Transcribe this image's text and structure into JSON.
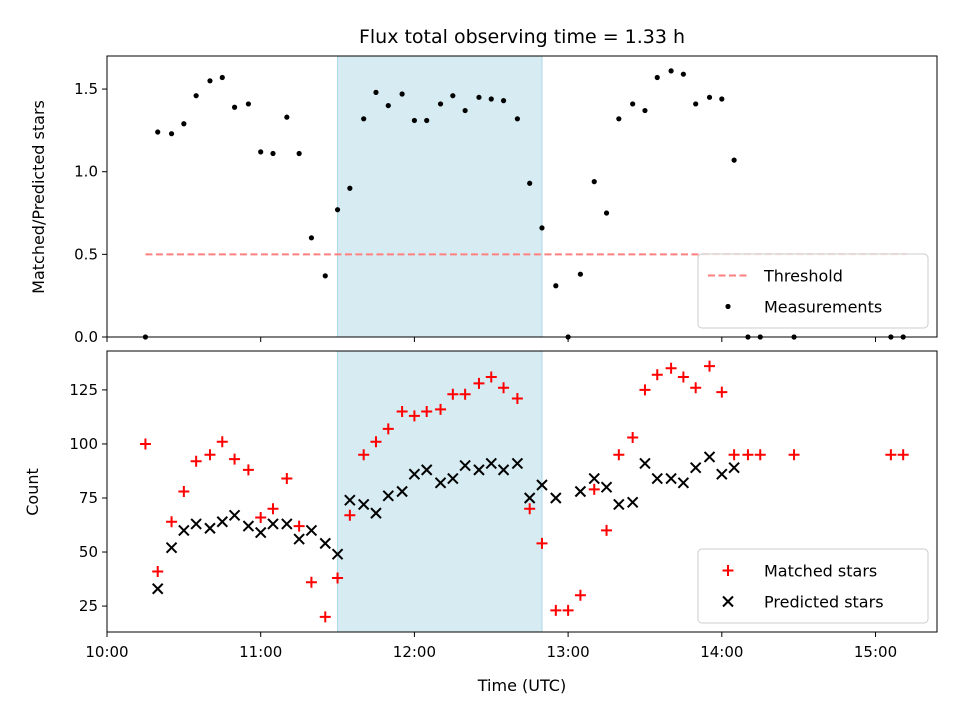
{
  "chart_data": {
    "title": "Flux total observing time = 1.33 h",
    "xlabel": "Time (UTC)",
    "x_unit": "hours UTC",
    "xlim": [
      10.0,
      15.4
    ],
    "xticks": [
      10,
      11,
      12,
      13,
      14,
      15
    ],
    "xtick_labels": [
      "10:00",
      "11:00",
      "12:00",
      "13:00",
      "14:00",
      "15:00"
    ],
    "highlight_span": {
      "from": 11.5,
      "to": 12.83,
      "color": "#add8e6"
    },
    "panels": [
      {
        "type": "scatter",
        "ylabel": "Matched/Predicted stars",
        "ylim": [
          0,
          1.7
        ],
        "yticks": [
          0.0,
          0.5,
          1.0,
          1.5
        ],
        "ytick_labels": [
          "0.0",
          "0.5",
          "1.0",
          "1.5"
        ],
        "legend_position": "bottom-right",
        "threshold": {
          "name": "Threshold",
          "value": 0.5,
          "x": [
            10.25,
            15.2
          ],
          "color": "#ff7f7f",
          "style": "dashed"
        },
        "series": [
          {
            "name": "Measurements",
            "marker": "dot",
            "color": "#000000",
            "x": [
              10.25,
              10.33,
              10.42,
              10.5,
              10.58,
              10.67,
              10.75,
              10.83,
              10.92,
              11.0,
              11.08,
              11.17,
              11.25,
              11.33,
              11.42,
              11.5,
              11.58,
              11.67,
              11.75,
              11.83,
              11.92,
              12.0,
              12.08,
              12.17,
              12.25,
              12.33,
              12.42,
              12.5,
              12.58,
              12.67,
              12.75,
              12.83,
              12.92,
              13.0,
              13.08,
              13.17,
              13.25,
              13.33,
              13.42,
              13.5,
              13.58,
              13.67,
              13.75,
              13.83,
              13.92,
              14.0,
              14.08,
              14.17,
              14.25,
              14.47,
              15.1,
              15.18
            ],
            "y": [
              0.0,
              1.24,
              1.23,
              1.29,
              1.46,
              1.55,
              1.57,
              1.39,
              1.41,
              1.12,
              1.11,
              1.33,
              1.11,
              0.6,
              0.37,
              0.77,
              0.9,
              1.32,
              1.48,
              1.4,
              1.47,
              1.31,
              1.31,
              1.41,
              1.46,
              1.37,
              1.45,
              1.44,
              1.43,
              1.32,
              0.93,
              0.66,
              0.31,
              0.0,
              0.38,
              0.94,
              0.75,
              1.32,
              1.41,
              1.37,
              1.57,
              1.61,
              1.59,
              1.41,
              1.45,
              1.44,
              1.07,
              0.0,
              0.0,
              0.0,
              0.0,
              0.0
            ]
          }
        ]
      },
      {
        "type": "scatter",
        "ylabel": "Count",
        "ylim": [
          13,
          143
        ],
        "yticks": [
          25,
          50,
          75,
          100,
          125
        ],
        "ytick_labels": [
          "25",
          "50",
          "75",
          "100",
          "125"
        ],
        "legend_position": "bottom-right",
        "series": [
          {
            "name": "Matched stars",
            "marker": "plus",
            "color": "#ff0000",
            "x": [
              10.25,
              10.33,
              10.42,
              10.5,
              10.58,
              10.67,
              10.75,
              10.83,
              10.92,
              11.0,
              11.08,
              11.17,
              11.25,
              11.33,
              11.42,
              11.5,
              11.58,
              11.67,
              11.75,
              11.83,
              11.92,
              12.0,
              12.08,
              12.17,
              12.25,
              12.33,
              12.42,
              12.5,
              12.58,
              12.67,
              12.75,
              12.83,
              12.92,
              13.0,
              13.08,
              13.17,
              13.25,
              13.33,
              13.42,
              13.5,
              13.58,
              13.67,
              13.75,
              13.83,
              13.92,
              14.0,
              14.08,
              14.17,
              14.25,
              14.47,
              15.1,
              15.18
            ],
            "y": [
              100,
              41,
              64,
              78,
              92,
              95,
              101,
              93,
              88,
              66,
              70,
              84,
              62,
              36,
              20,
              38,
              67,
              95,
              101,
              107,
              115,
              113,
              115,
              116,
              123,
              123,
              128,
              131,
              126,
              121,
              70,
              54,
              23,
              23,
              30,
              79,
              60,
              95,
              103,
              125,
              132,
              135,
              131,
              126,
              136,
              124,
              95,
              95,
              95,
              95,
              95,
              95
            ]
          },
          {
            "name": "Predicted stars",
            "marker": "x",
            "color": "#000000",
            "x": [
              10.33,
              10.42,
              10.5,
              10.58,
              10.67,
              10.75,
              10.83,
              10.92,
              11.0,
              11.08,
              11.17,
              11.25,
              11.33,
              11.42,
              11.5,
              11.58,
              11.67,
              11.75,
              11.83,
              11.92,
              12.0,
              12.08,
              12.17,
              12.25,
              12.33,
              12.42,
              12.5,
              12.58,
              12.67,
              12.75,
              12.83,
              12.92,
              13.08,
              13.17,
              13.25,
              13.33,
              13.42,
              13.5,
              13.58,
              13.67,
              13.75,
              13.83,
              13.92,
              14.0,
              14.08
            ],
            "y": [
              33,
              52,
              60,
              63,
              61,
              64,
              67,
              62,
              59,
              63,
              63,
              56,
              60,
              54,
              49,
              74,
              72,
              68,
              76,
              78,
              86,
              88,
              82,
              84,
              90,
              88,
              91,
              88,
              91,
              75,
              81,
              75,
              78,
              84,
              80,
              72,
              73,
              91,
              84,
              84,
              82,
              89,
              94,
              86,
              89
            ]
          }
        ]
      }
    ]
  }
}
